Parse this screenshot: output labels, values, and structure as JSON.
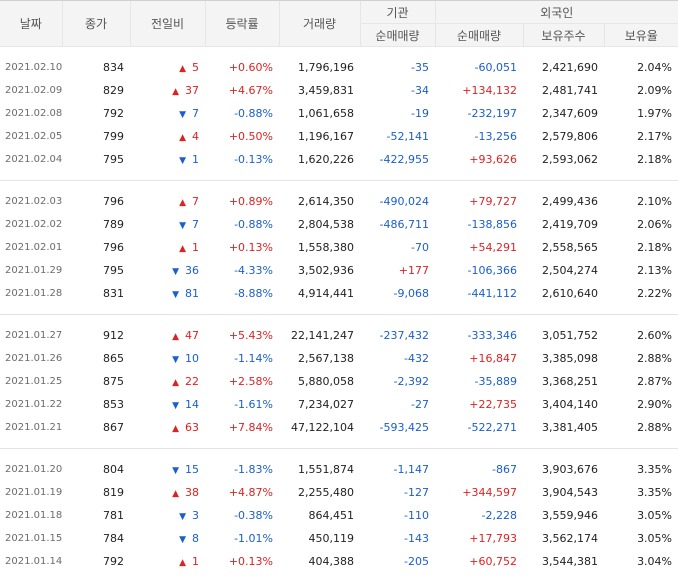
{
  "headers": {
    "date": "날짜",
    "close": "종가",
    "change": "전일비",
    "rate": "등락률",
    "volume": "거래량",
    "institution": "기관",
    "foreign": "외국인",
    "inst_net": "순매매량",
    "for_net": "순매매량",
    "holdings": "보유주수",
    "hold_rate": "보유율"
  },
  "groups": [
    [
      {
        "date": "2021.02.10",
        "close": "834",
        "dir": "up",
        "change": "5",
        "rate": "+0.60%",
        "volume": "1,796,196",
        "inst": "-35",
        "foreign": "-60,051",
        "holdings": "2,421,690",
        "hold_rate": "2.04%"
      },
      {
        "date": "2021.02.09",
        "close": "829",
        "dir": "up",
        "change": "37",
        "rate": "+4.67%",
        "volume": "3,459,831",
        "inst": "-34",
        "foreign": "+134,132",
        "holdings": "2,481,741",
        "hold_rate": "2.09%"
      },
      {
        "date": "2021.02.08",
        "close": "792",
        "dir": "down",
        "change": "7",
        "rate": "-0.88%",
        "volume": "1,061,658",
        "inst": "-19",
        "foreign": "-232,197",
        "holdings": "2,347,609",
        "hold_rate": "1.97%"
      },
      {
        "date": "2021.02.05",
        "close": "799",
        "dir": "up",
        "change": "4",
        "rate": "+0.50%",
        "volume": "1,196,167",
        "inst": "-52,141",
        "foreign": "-13,256",
        "holdings": "2,579,806",
        "hold_rate": "2.17%"
      },
      {
        "date": "2021.02.04",
        "close": "795",
        "dir": "down",
        "change": "1",
        "rate": "-0.13%",
        "volume": "1,620,226",
        "inst": "-422,955",
        "foreign": "+93,626",
        "holdings": "2,593,062",
        "hold_rate": "2.18%"
      }
    ],
    [
      {
        "date": "2021.02.03",
        "close": "796",
        "dir": "up",
        "change": "7",
        "rate": "+0.89%",
        "volume": "2,614,350",
        "inst": "-490,024",
        "foreign": "+79,727",
        "holdings": "2,499,436",
        "hold_rate": "2.10%"
      },
      {
        "date": "2021.02.02",
        "close": "789",
        "dir": "down",
        "change": "7",
        "rate": "-0.88%",
        "volume": "2,804,538",
        "inst": "-486,711",
        "foreign": "-138,856",
        "holdings": "2,419,709",
        "hold_rate": "2.06%"
      },
      {
        "date": "2021.02.01",
        "close": "796",
        "dir": "up",
        "change": "1",
        "rate": "+0.13%",
        "volume": "1,558,380",
        "inst": "-70",
        "foreign": "+54,291",
        "holdings": "2,558,565",
        "hold_rate": "2.18%"
      },
      {
        "date": "2021.01.29",
        "close": "795",
        "dir": "down",
        "change": "36",
        "rate": "-4.33%",
        "volume": "3,502,936",
        "inst": "+177",
        "foreign": "-106,366",
        "holdings": "2,504,274",
        "hold_rate": "2.13%"
      },
      {
        "date": "2021.01.28",
        "close": "831",
        "dir": "down",
        "change": "81",
        "rate": "-8.88%",
        "volume": "4,914,441",
        "inst": "-9,068",
        "foreign": "-441,112",
        "holdings": "2,610,640",
        "hold_rate": "2.22%"
      }
    ],
    [
      {
        "date": "2021.01.27",
        "close": "912",
        "dir": "up",
        "change": "47",
        "rate": "+5.43%",
        "volume": "22,141,247",
        "inst": "-237,432",
        "foreign": "-333,346",
        "holdings": "3,051,752",
        "hold_rate": "2.60%"
      },
      {
        "date": "2021.01.26",
        "close": "865",
        "dir": "down",
        "change": "10",
        "rate": "-1.14%",
        "volume": "2,567,138",
        "inst": "-432",
        "foreign": "+16,847",
        "holdings": "3,385,098",
        "hold_rate": "2.88%"
      },
      {
        "date": "2021.01.25",
        "close": "875",
        "dir": "up",
        "change": "22",
        "rate": "+2.58%",
        "volume": "5,880,058",
        "inst": "-2,392",
        "foreign": "-35,889",
        "holdings": "3,368,251",
        "hold_rate": "2.87%"
      },
      {
        "date": "2021.01.22",
        "close": "853",
        "dir": "down",
        "change": "14",
        "rate": "-1.61%",
        "volume": "7,234,027",
        "inst": "-27",
        "foreign": "+22,735",
        "holdings": "3,404,140",
        "hold_rate": "2.90%"
      },
      {
        "date": "2021.01.21",
        "close": "867",
        "dir": "up",
        "change": "63",
        "rate": "+7.84%",
        "volume": "47,122,104",
        "inst": "-593,425",
        "foreign": "-522,271",
        "holdings": "3,381,405",
        "hold_rate": "2.88%"
      }
    ],
    [
      {
        "date": "2021.01.20",
        "close": "804",
        "dir": "down",
        "change": "15",
        "rate": "-1.83%",
        "volume": "1,551,874",
        "inst": "-1,147",
        "foreign": "-867",
        "holdings": "3,903,676",
        "hold_rate": "3.35%"
      },
      {
        "date": "2021.01.19",
        "close": "819",
        "dir": "up",
        "change": "38",
        "rate": "+4.87%",
        "volume": "2,255,480",
        "inst": "-127",
        "foreign": "+344,597",
        "holdings": "3,904,543",
        "hold_rate": "3.35%"
      },
      {
        "date": "2021.01.18",
        "close": "781",
        "dir": "down",
        "change": "3",
        "rate": "-0.38%",
        "volume": "864,451",
        "inst": "-110",
        "foreign": "-2,228",
        "holdings": "3,559,946",
        "hold_rate": "3.05%"
      },
      {
        "date": "2021.01.15",
        "close": "784",
        "dir": "down",
        "change": "8",
        "rate": "-1.01%",
        "volume": "450,119",
        "inst": "-143",
        "foreign": "+17,793",
        "holdings": "3,562,174",
        "hold_rate": "3.05%"
      },
      {
        "date": "2021.01.14",
        "close": "792",
        "dir": "up",
        "change": "1",
        "rate": "+0.13%",
        "volume": "404,388",
        "inst": "-205",
        "foreign": "+60,752",
        "holdings": "3,544,381",
        "hold_rate": "3.04%"
      }
    ]
  ],
  "colors": {
    "up": "#dd2222",
    "down": "#1a5ecf"
  }
}
